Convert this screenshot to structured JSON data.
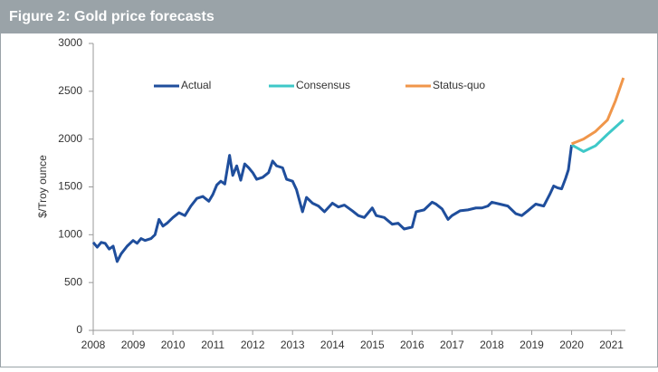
{
  "chart_data": {
    "type": "line",
    "title": "Figure 2: Gold price forecasts",
    "ylabel": "$/Troy ounce",
    "xlim": [
      2008,
      2021.35
    ],
    "xticks": [
      2008,
      2009,
      2010,
      2011,
      2012,
      2013,
      2014,
      2015,
      2016,
      2017,
      2018,
      2019,
      2020,
      2021
    ],
    "ylim": [
      0,
      3000
    ],
    "yticks": [
      0,
      500,
      1000,
      1500,
      2000,
      2500,
      3000
    ],
    "grid": false,
    "legend": "top",
    "series": [
      {
        "name": "Actual",
        "color": "#1f4e9c",
        "x": [
          2008.0,
          2008.1,
          2008.2,
          2008.3,
          2008.4,
          2008.5,
          2008.6,
          2008.7,
          2008.85,
          2009.0,
          2009.1,
          2009.2,
          2009.3,
          2009.45,
          2009.55,
          2009.65,
          2009.75,
          2009.85,
          2010.0,
          2010.15,
          2010.3,
          2010.45,
          2010.6,
          2010.75,
          2010.9,
          2011.0,
          2011.1,
          2011.2,
          2011.3,
          2011.42,
          2011.5,
          2011.6,
          2011.7,
          2011.8,
          2011.9,
          2012.0,
          2012.1,
          2012.25,
          2012.4,
          2012.5,
          2012.6,
          2012.75,
          2012.85,
          2013.0,
          2013.1,
          2013.25,
          2013.35,
          2013.5,
          2013.65,
          2013.8,
          2014.0,
          2014.15,
          2014.3,
          2014.5,
          2014.65,
          2014.8,
          2015.0,
          2015.1,
          2015.3,
          2015.5,
          2015.65,
          2015.8,
          2016.0,
          2016.1,
          2016.3,
          2016.5,
          2016.6,
          2016.75,
          2016.9,
          2017.0,
          2017.2,
          2017.4,
          2017.6,
          2017.75,
          2017.9,
          2018.0,
          2018.2,
          2018.4,
          2018.6,
          2018.75,
          2018.9,
          2019.1,
          2019.3,
          2019.45,
          2019.55,
          2019.65,
          2019.75,
          2019.85,
          2019.92,
          2020.0
        ],
        "values": [
          920,
          870,
          920,
          910,
          850,
          880,
          720,
          800,
          880,
          940,
          910,
          960,
          940,
          960,
          1000,
          1160,
          1090,
          1120,
          1180,
          1230,
          1200,
          1300,
          1380,
          1400,
          1350,
          1420,
          1520,
          1560,
          1530,
          1830,
          1620,
          1720,
          1570,
          1740,
          1700,
          1650,
          1580,
          1600,
          1650,
          1770,
          1720,
          1700,
          1580,
          1560,
          1470,
          1240,
          1390,
          1330,
          1300,
          1240,
          1330,
          1290,
          1310,
          1250,
          1200,
          1180,
          1280,
          1200,
          1180,
          1110,
          1120,
          1060,
          1080,
          1240,
          1260,
          1340,
          1320,
          1270,
          1160,
          1200,
          1250,
          1260,
          1280,
          1280,
          1300,
          1340,
          1320,
          1300,
          1220,
          1200,
          1250,
          1320,
          1300,
          1420,
          1510,
          1490,
          1480,
          1590,
          1680,
          1940
        ]
      },
      {
        "name": "Consensus",
        "color": "#3ec8c8",
        "x": [
          2020.0,
          2020.3,
          2020.6,
          2020.9,
          2021.3
        ],
        "values": [
          1940,
          1870,
          1930,
          2050,
          2200
        ]
      },
      {
        "name": "Status-quo",
        "color": "#f0964a",
        "x": [
          2020.0,
          2020.3,
          2020.6,
          2020.9,
          2021.1,
          2021.3
        ],
        "values": [
          1950,
          2000,
          2080,
          2200,
          2400,
          2640
        ]
      }
    ]
  }
}
